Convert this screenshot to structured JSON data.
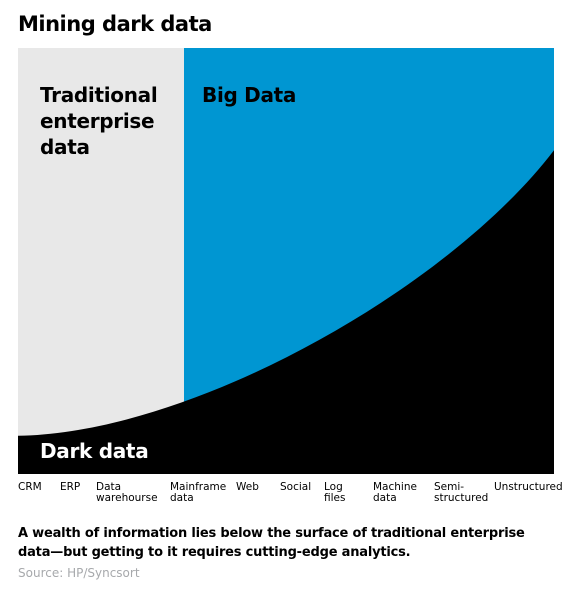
{
  "chart_data": {
    "type": "area",
    "title": "Mining dark data",
    "categories": [
      "CRM",
      "ERP",
      "Data\nwarehourse",
      "Mainframe\ndata",
      "Web",
      "Social",
      "Log\nfiles",
      "Machine\ndata",
      "Semi-\nstructured",
      "Unstructured"
    ],
    "regions": [
      {
        "name": "traditional",
        "label": [
          "Traditional",
          "enterprise",
          "data"
        ],
        "color": "#e8e8e8",
        "from_category": "CRM",
        "to_category": "Mainframe\ndata"
      },
      {
        "name": "big",
        "label": [
          "Big Data"
        ],
        "color": "#0096d2",
        "from_category": "Mainframe\ndata",
        "to_category": "Unstructured"
      },
      {
        "name": "dark",
        "label": [
          "Dark data"
        ],
        "color": "#000000"
      }
    ],
    "dark_data_curve": {
      "description_levels": [
        0.09,
        0.09,
        0.11,
        0.16,
        0.24,
        0.31,
        0.41,
        0.53,
        0.67,
        0.76
      ]
    },
    "grid": false,
    "legend": "none"
  },
  "caption": "A wealth of information lies below the surface of traditional enterprise data—but getting to it requires cutting-edge analytics.",
  "source": "Source: HP/Syncsort"
}
